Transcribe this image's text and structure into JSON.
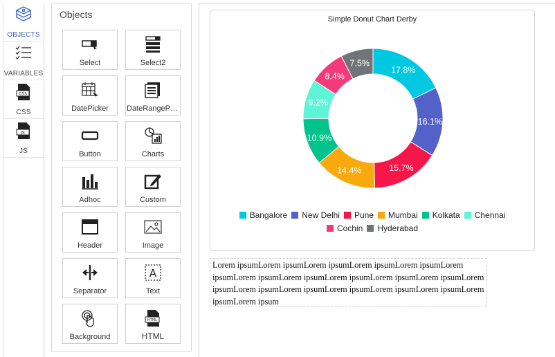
{
  "rail": [
    {
      "name": "objects",
      "label": "OBJECTS",
      "icon": "box-stack-icon"
    },
    {
      "name": "variables",
      "label": "VARIABLES",
      "icon": "checklist-icon"
    },
    {
      "name": "css",
      "label": "CSS",
      "icon": "css-file-icon"
    },
    {
      "name": "js",
      "label": "JS",
      "icon": "js-file-icon"
    }
  ],
  "objects_panel": {
    "title": "Objects",
    "items": [
      {
        "label": "Select",
        "icon": "select-icon"
      },
      {
        "label": "Select2",
        "icon": "select2-icon"
      },
      {
        "label": "DatePicker",
        "icon": "calendar-icon"
      },
      {
        "label": "DateRangePicker",
        "icon": "date-range-icon"
      },
      {
        "label": "Button",
        "icon": "button-icon"
      },
      {
        "label": "Charts",
        "icon": "charts-icon"
      },
      {
        "label": "Adhoc",
        "icon": "bar-chart-icon"
      },
      {
        "label": "Custom",
        "icon": "custom-edit-icon"
      },
      {
        "label": "Header",
        "icon": "header-icon"
      },
      {
        "label": "Image",
        "icon": "image-icon"
      },
      {
        "label": "Separator",
        "icon": "separator-icon"
      },
      {
        "label": "Text",
        "icon": "text-icon"
      },
      {
        "label": "Background",
        "icon": "touch-icon"
      },
      {
        "label": "HTML",
        "icon": "html-file-icon"
      }
    ]
  },
  "chart_data": {
    "type": "pie",
    "donut": true,
    "title": "Simple Donut Chart Derby",
    "categories": [
      "Bangalore",
      "New Delhi",
      "Pune",
      "Mumbai",
      "Kolkata",
      "Chennai",
      "Cochin",
      "Hyderabad"
    ],
    "values": [
      17.8,
      16.1,
      15.7,
      14.4,
      10.9,
      9.2,
      8.4,
      7.5
    ],
    "labels": [
      "17.8%",
      "16.1%",
      "15.7%",
      "14.4%",
      "10.9%",
      "9.2%",
      "8.4%",
      "7.5%"
    ],
    "colors": [
      "#00c8e0",
      "#5461c8",
      "#f5174a",
      "#f8a90d",
      "#00c48c",
      "#5ef5d6",
      "#f43a7b",
      "#6f7479"
    ],
    "legend_position": "bottom"
  },
  "text_block": {
    "content": "Lorem ipsumLorem ipsumLorem ipsumLorem ipsumLorem ipsumLorem ipsumLorem ipsumLorem ipsumLorem ipsumLorem ipsumLorem ipsumLorem ipsumLorem ipsumLorem ipsumLorem ipsumLorem ipsumLorem ipsumLorem ipsumLorem ipsum"
  }
}
